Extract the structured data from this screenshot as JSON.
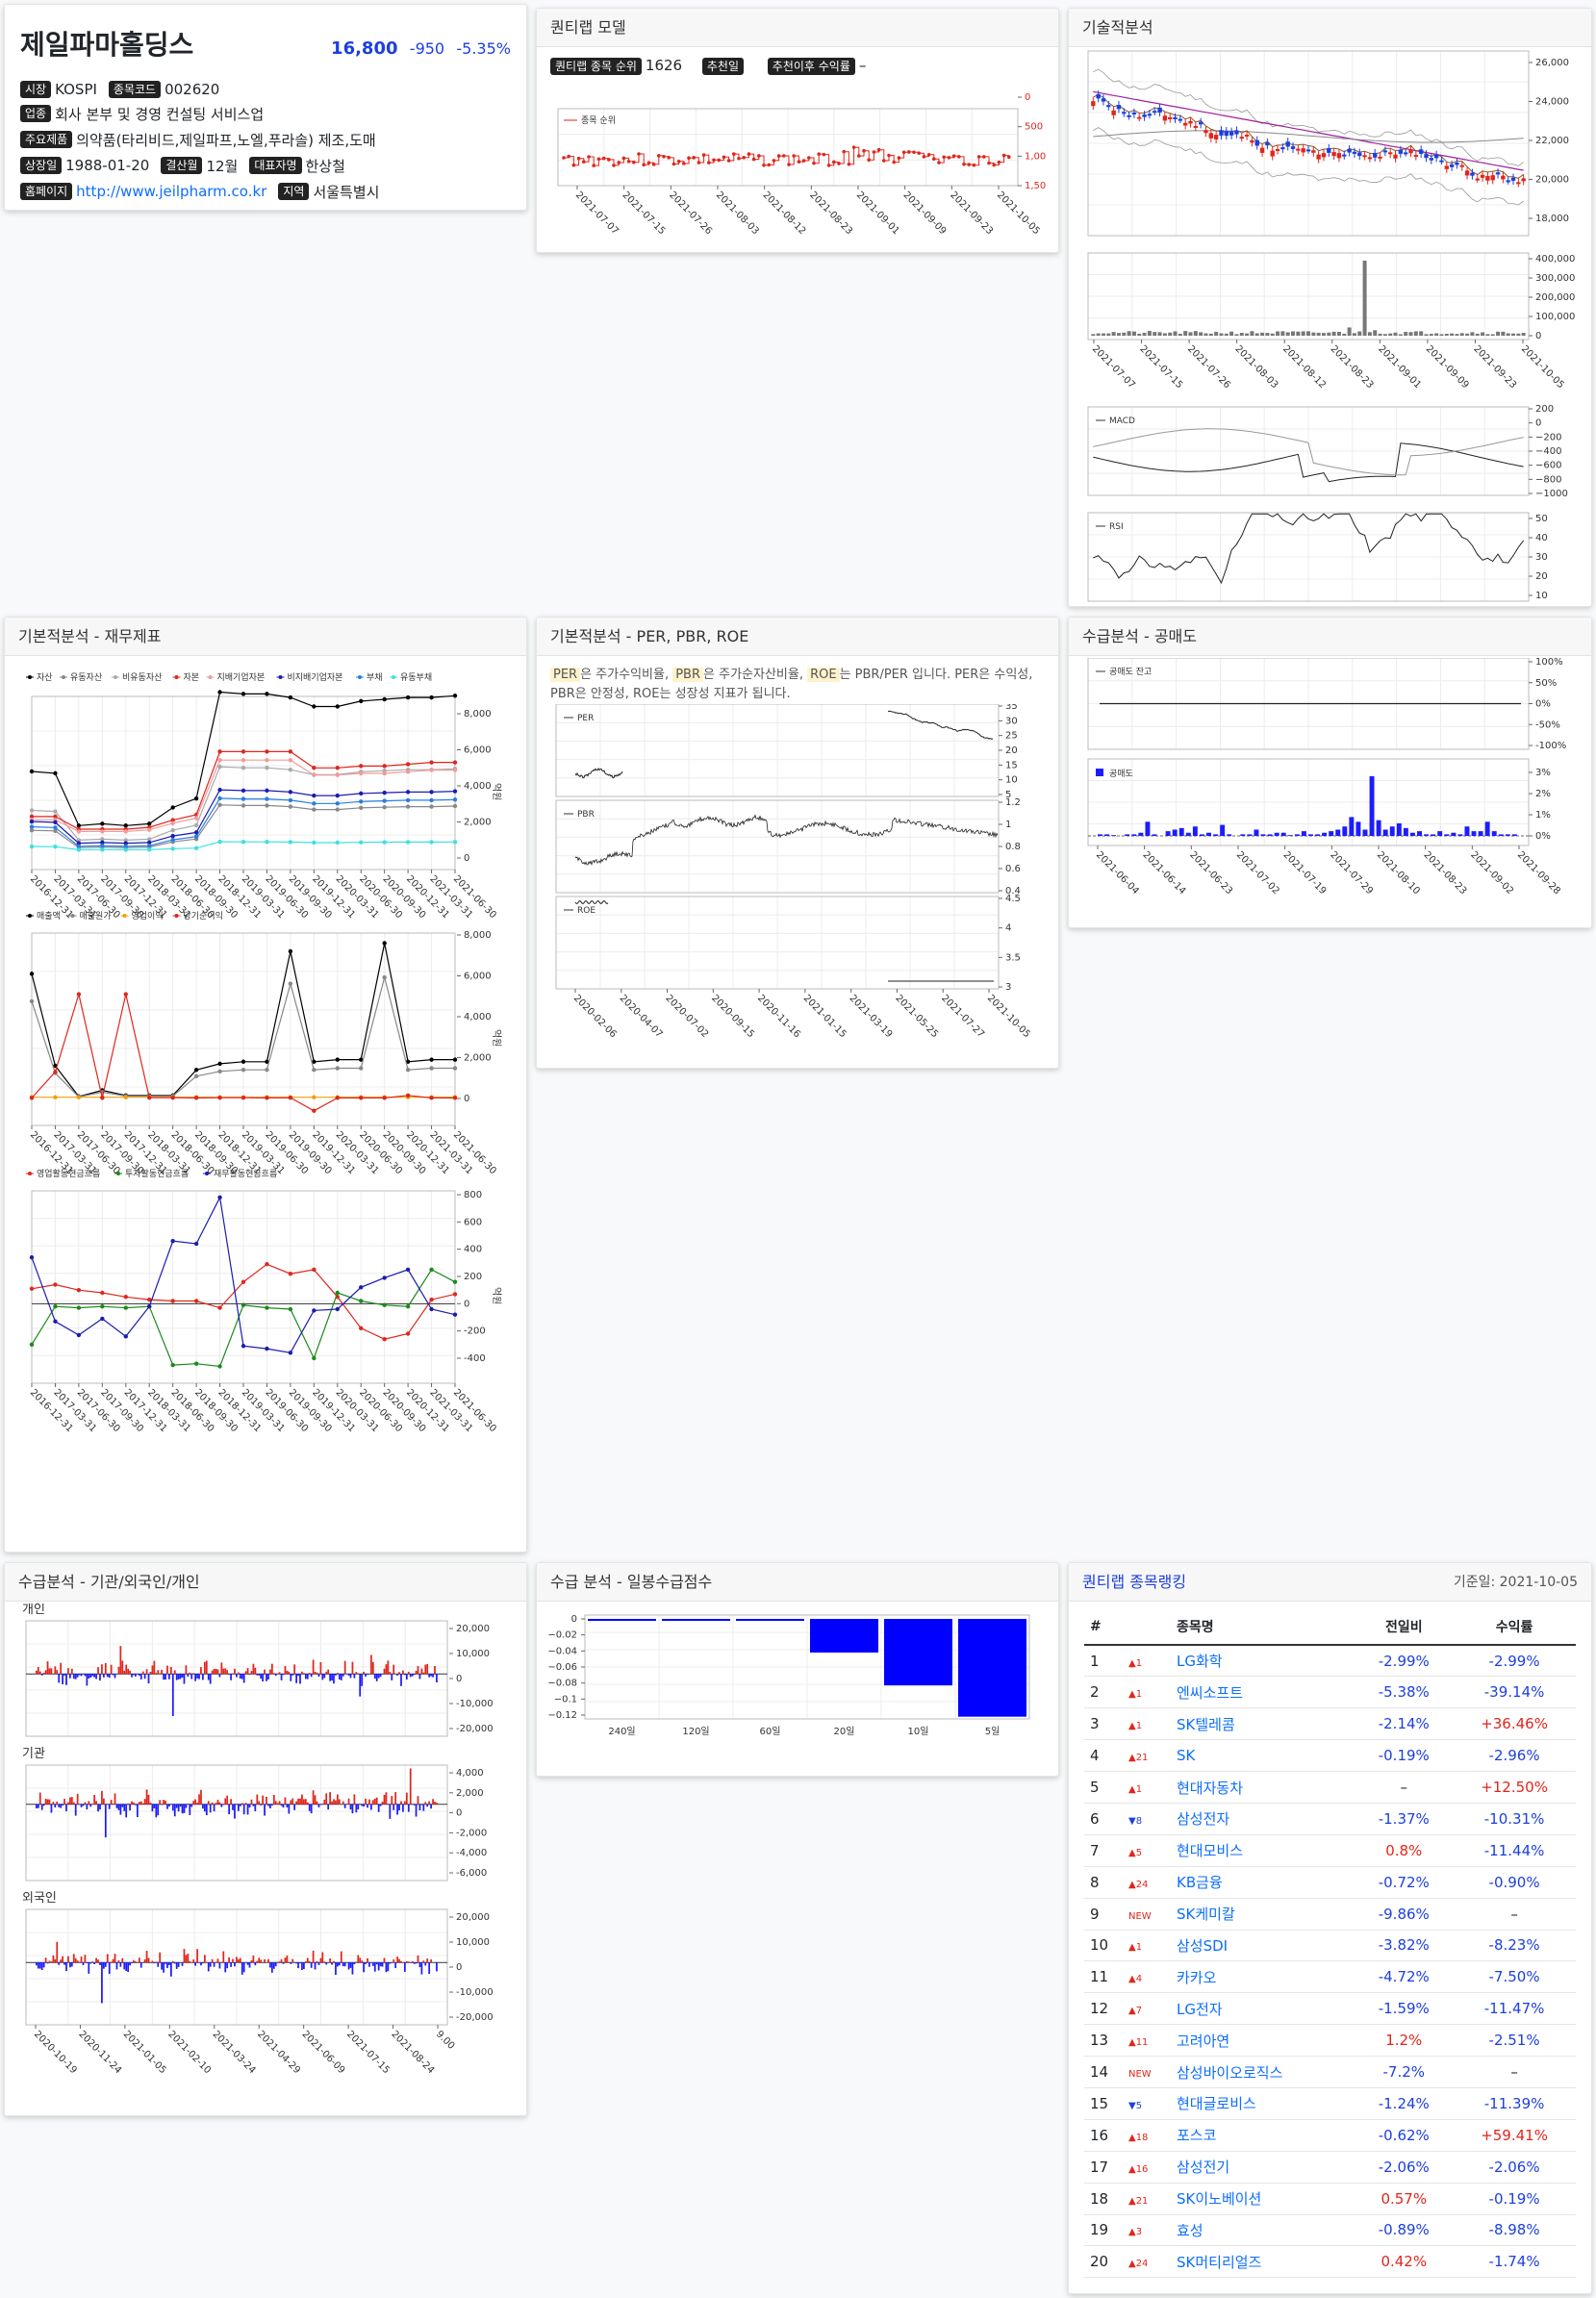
{
  "company": {
    "name": "제일파마홀딩스",
    "price": "16,800",
    "change": "-950",
    "change_pct": "-5.35%"
  },
  "info": {
    "market_label": "시장",
    "market": "KOSPI",
    "code_label": "종목코드",
    "code": "002620",
    "industry_label": "업종",
    "industry": "회사 본부 및 경영 컨설팅 서비스업",
    "products_label": "주요제품",
    "products": "의약품(타리비드,제일파프,노엘,푸라솔) 제조,도매",
    "listed_label": "상장일",
    "listed": "1988-01-20",
    "fiscal_label": "결산월",
    "fiscal": "12월",
    "ceo_label": "대표자명",
    "ceo": "한상철",
    "homepage_label": "홈페이지",
    "homepage": "http://www.jeilpharm.co.kr",
    "region_label": "지역",
    "region": "서울특별시"
  },
  "quant": {
    "title": "퀀티랩 모델",
    "rank_label": "퀀티랩 종목 순위",
    "rank_value": "1626",
    "rec_date_label": "추천일",
    "rec_date_value": "",
    "return_label": "추천이후 수익률",
    "return_value": "–",
    "legend": "종목 순위",
    "x_labels": [
      "2021-07-07",
      "2021-07-15",
      "2021-07-26",
      "2021-08-03",
      "2021-08-12",
      "2021-08-23",
      "2021-09-01",
      "2021-09-09",
      "2021-09-23",
      "2021-10-05"
    ],
    "y_labels": [
      "0",
      "500",
      "1,000",
      "1,500"
    ]
  },
  "tech": {
    "title": "기술적분석",
    "price_axis": [
      "26,000",
      "24,000",
      "22,000",
      "20,000",
      "18,000"
    ],
    "vol_axis": [
      "400,000",
      "300,000",
      "200,000",
      "100,000",
      "0"
    ],
    "x_labels": [
      "2021-07-07",
      "2021-07-15",
      "2021-07-26",
      "2021-08-03",
      "2021-08-12",
      "2021-08-23",
      "2021-09-01",
      "2021-09-09",
      "2021-09-23",
      "2021-10-05"
    ],
    "macd_label": "MACD",
    "macd_axis": [
      "200",
      "0",
      "−200",
      "−400",
      "−600",
      "−800",
      "−1000"
    ],
    "rsi_label": "RSI",
    "rsi_axis": [
      "50",
      "40",
      "30",
      "20",
      "10"
    ]
  },
  "fin": {
    "title": "기본적분석 - 재무제표",
    "legend1": [
      "자산",
      "유동자산",
      "비유동자산",
      "자본",
      "지배기업자본",
      "비지배기업자본",
      "부채",
      "유동부채"
    ],
    "legend1_colors": [
      "#000000",
      "#888888",
      "#aaaaaa",
      "#e0261c",
      "#f29b9b",
      "#1c1cb0",
      "#2b7de0",
      "#3ee0e0"
    ],
    "axis1": [
      "8,000",
      "6,000",
      "4,000",
      "2,000",
      "0"
    ],
    "legend2": [
      "매출액",
      "매출원가",
      "영업이익",
      "당기순이익"
    ],
    "legend2_colors": [
      "#000000",
      "#888888",
      "#f0a000",
      "#e0261c"
    ],
    "axis2": [
      "8,000",
      "6,000",
      "4,000",
      "2,000",
      "0"
    ],
    "legend3": [
      "영업활동현금흐름",
      "투자활동현금흐름",
      "재무활동현금흐름"
    ],
    "legend3_colors": [
      "#e0261c",
      "#1a8a1a",
      "#1c1cb0"
    ],
    "axis3": [
      "800",
      "600",
      "400",
      "200",
      "0",
      "-200",
      "-400"
    ],
    "unit": "억원",
    "x_labels": [
      "2016-12-31",
      "2017-03-31",
      "2017-06-30",
      "2017-09-30",
      "2017-12-31",
      "2018-03-31",
      "2018-06-30",
      "2018-09-30",
      "2018-12-31",
      "2019-03-31",
      "2019-06-30",
      "2019-09-30",
      "2019-12-31",
      "2020-03-31",
      "2020-06-30",
      "2020-09-30",
      "2020-12-31",
      "2021-03-31",
      "2021-06-30"
    ]
  },
  "per": {
    "title": "기본적분석 - PER, PBR, ROE",
    "k1": "PER",
    "t1": "은 주가수익비율, ",
    "k2": "PBR",
    "t2": "은 주가순자산비율, ",
    "k3": "ROE",
    "t3": "는 PBR/PER 입니다. PER은 수익성, PBR은 안정성, ROE는 성장성 지표가 됩니다.",
    "per_label": "PER",
    "pbr_label": "PBR",
    "roe_label": "ROE",
    "per_axis": [
      "35",
      "30",
      "25",
      "20",
      "15",
      "10",
      "5"
    ],
    "pbr_axis": [
      "1.2",
      "1",
      "0.8",
      "0.6",
      "0.4"
    ],
    "roe_axis": [
      "4.5",
      "4",
      "3.5",
      "3"
    ],
    "x_labels": [
      "2020-02-06",
      "2020-04-07",
      "2020-07-02",
      "2020-09-15",
      "2020-11-16",
      "2021-01-15",
      "2021-03-19",
      "2021-05-25",
      "2021-07-27",
      "2021-10-05"
    ]
  },
  "short": {
    "title": "수급분석 - 공매도",
    "balance_label": "공매도 잔고",
    "balance_axis": [
      "100%",
      "50%",
      "0%",
      "-50%",
      "-100%"
    ],
    "vol_label": "공매도",
    "vol_axis": [
      "3%",
      "2%",
      "1%",
      "0%"
    ],
    "x_labels": [
      "2021-06-04",
      "2021-06-14",
      "2021-06-23",
      "2021-07-02",
      "2021-07-19",
      "2021-07-29",
      "2021-08-10",
      "2021-08-23",
      "2021-09-02",
      "2021-09-28"
    ]
  },
  "supply": {
    "title": "수급분석 - 기관/외국인/개인",
    "individual": "개인",
    "institution": "기관",
    "foreign": "외국인",
    "ind_axis": [
      "20,000",
      "10,000",
      "0",
      "-10,000",
      "-20,000"
    ],
    "inst_axis": [
      "4,000",
      "2,000",
      "0",
      "-2,000",
      "-4,000",
      "-6,000"
    ],
    "for_axis": [
      "20,000",
      "10,000",
      "0",
      "-10,000",
      "-20,000"
    ],
    "x_labels": [
      "2020-10-19",
      "2020-11-24",
      "2021-01-05",
      "2021-02-10",
      "2021-03-24",
      "2021-04-29",
      "2021-06-09",
      "2021-07-15",
      "2021-08-24",
      "9.00"
    ]
  },
  "score": {
    "title": "수급 분석 - 일봉수급점수",
    "axis": [
      "0",
      "−0.02",
      "−0.04",
      "−0.06",
      "−0.08",
      "−0.1",
      "−0.12"
    ],
    "chart_data": {
      "type": "bar",
      "categories": [
        "240일",
        "120일",
        "60일",
        "20일",
        "10일",
        "5일"
      ],
      "values": [
        -0.001,
        -0.001,
        -0.001,
        -0.042,
        -0.083,
        -0.122
      ],
      "ylim": [
        -0.125,
        0.002
      ]
    }
  },
  "ranking": {
    "title": "퀀티랩 종목랭킹",
    "date": "기준일: 2021-10-05",
    "headers": [
      "#",
      "종목명",
      "전일비",
      "수익률"
    ],
    "rows": [
      {
        "n": "1",
        "chg": "▲1",
        "dn": false,
        "name": "LG화학",
        "day": "-2.99%",
        "ret": "-2.99%"
      },
      {
        "n": "2",
        "chg": "▲1",
        "dn": false,
        "name": "엔씨소프트",
        "day": "-5.38%",
        "ret": "-39.14%"
      },
      {
        "n": "3",
        "chg": "▲1",
        "dn": false,
        "name": "SK텔레콤",
        "day": "-2.14%",
        "ret": "+36.46%"
      },
      {
        "n": "4",
        "chg": "▲21",
        "dn": false,
        "name": "SK",
        "day": "-0.19%",
        "ret": "-2.96%"
      },
      {
        "n": "5",
        "chg": "▲1",
        "dn": false,
        "name": "현대자동차",
        "day": "–",
        "ret": "+12.50%"
      },
      {
        "n": "6",
        "chg": "▼8",
        "dn": true,
        "name": "삼성전자",
        "day": "-1.37%",
        "ret": "-10.31%"
      },
      {
        "n": "7",
        "chg": "▲5",
        "dn": false,
        "name": "현대모비스",
        "day": "0.8%",
        "ret": "-11.44%"
      },
      {
        "n": "8",
        "chg": "▲24",
        "dn": false,
        "name": "KB금융",
        "day": "-0.72%",
        "ret": "-0.90%"
      },
      {
        "n": "9",
        "chg": "NEW",
        "dn": false,
        "name": "SK케미칼",
        "day": "-9.86%",
        "ret": "–"
      },
      {
        "n": "10",
        "chg": "▲1",
        "dn": false,
        "name": "삼성SDI",
        "day": "-3.82%",
        "ret": "-8.23%"
      },
      {
        "n": "11",
        "chg": "▲4",
        "dn": false,
        "name": "카카오",
        "day": "-4.72%",
        "ret": "-7.50%"
      },
      {
        "n": "12",
        "chg": "▲7",
        "dn": false,
        "name": "LG전자",
        "day": "-1.59%",
        "ret": "-11.47%"
      },
      {
        "n": "13",
        "chg": "▲11",
        "dn": false,
        "name": "고려아연",
        "day": "1.2%",
        "ret": "-2.51%"
      },
      {
        "n": "14",
        "chg": "NEW",
        "dn": false,
        "name": "삼성바이오로직스",
        "day": "-7.2%",
        "ret": "–"
      },
      {
        "n": "15",
        "chg": "▼5",
        "dn": true,
        "name": "현대글로비스",
        "day": "-1.24%",
        "ret": "-11.39%"
      },
      {
        "n": "16",
        "chg": "▲18",
        "dn": false,
        "name": "포스코",
        "day": "-0.62%",
        "ret": "+59.41%"
      },
      {
        "n": "17",
        "chg": "▲16",
        "dn": false,
        "name": "삼성전기",
        "day": "-2.06%",
        "ret": "-2.06%"
      },
      {
        "n": "18",
        "chg": "▲21",
        "dn": false,
        "name": "SK이노베이션",
        "day": "0.57%",
        "ret": "-0.19%"
      },
      {
        "n": "19",
        "chg": "▲3",
        "dn": false,
        "name": "효성",
        "day": "-0.89%",
        "ret": "-8.98%"
      },
      {
        "n": "20",
        "chg": "▲24",
        "dn": false,
        "name": "SK머티리얼즈",
        "day": "0.42%",
        "ret": "-1.74%"
      }
    ]
  }
}
